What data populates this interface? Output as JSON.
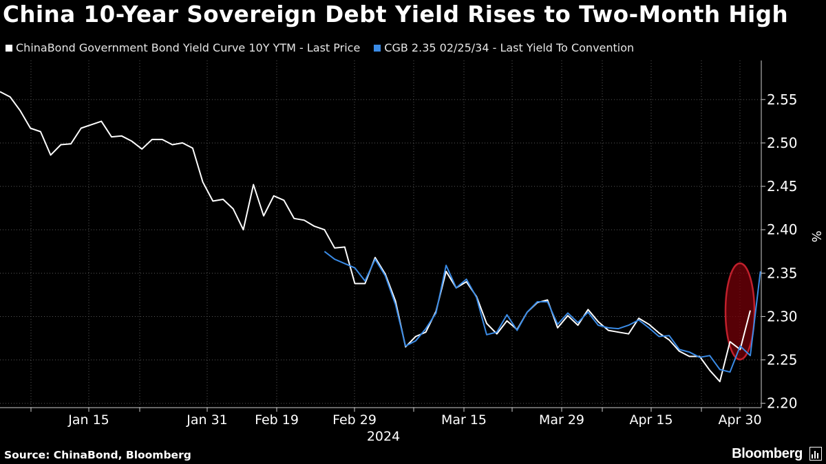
{
  "title": "China 10-Year Sovereign Debt Yield Rises to Two-Month High",
  "source": "Source: ChinaBond, Bloomberg",
  "brand": "Bloomberg",
  "chart_data": {
    "type": "line",
    "title": "China 10-Year Sovereign Debt Yield Rises to Two-Month High",
    "ylabel": "%",
    "ylim": [
      2.195,
      2.595
    ],
    "yticks": [
      "2.20",
      "2.25",
      "2.30",
      "2.35",
      "2.40",
      "2.45",
      "2.50",
      "2.55"
    ],
    "xticks": [
      "Jan 15",
      "Jan 31",
      "Feb 19",
      "Feb 29",
      "Mar 15",
      "Mar 29",
      "Apr 15",
      "Apr 30"
    ],
    "year_label": "2024",
    "grid": true,
    "legend_position": "top-left",
    "highlight": "ellipse around latest values (Apr 29–30)",
    "series": [
      {
        "name": "ChinaBond Government Bond Yield Curve 10Y YTM - Last Price",
        "color": "#ffffff",
        "values": [
          2.559,
          2.553,
          2.537,
          2.517,
          2.513,
          2.486,
          2.498,
          2.499,
          2.517,
          2.521,
          2.525,
          2.507,
          2.508,
          2.502,
          2.493,
          2.504,
          2.504,
          2.498,
          2.5,
          2.494,
          2.455,
          2.433,
          2.435,
          2.424,
          2.4,
          2.452,
          2.416,
          2.439,
          2.434,
          2.413,
          2.411,
          2.404,
          2.4,
          2.379,
          2.38,
          2.338,
          2.338,
          2.368,
          2.349,
          2.318,
          2.265,
          2.277,
          2.282,
          2.306,
          2.352,
          2.333,
          2.34,
          2.323,
          2.292,
          2.28,
          2.295,
          2.285,
          2.305,
          2.316,
          2.319,
          2.287,
          2.301,
          2.29,
          2.308,
          2.294,
          2.284,
          2.282,
          2.28,
          2.298,
          2.291,
          2.281,
          2.273,
          2.26,
          2.254,
          2.254,
          2.238,
          2.225,
          2.271,
          2.262,
          2.307
        ]
      },
      {
        "name": "CGB 2.35 02/25/34 - Last Yield To Convention",
        "color": "#3a8be6",
        "start_index": 32,
        "values": [
          2.375,
          2.366,
          2.361,
          2.356,
          2.341,
          2.366,
          2.347,
          2.314,
          2.266,
          2.272,
          2.286,
          2.304,
          2.359,
          2.333,
          2.343,
          2.322,
          2.279,
          2.282,
          2.302,
          2.284,
          2.305,
          2.317,
          2.317,
          2.291,
          2.304,
          2.293,
          2.305,
          2.29,
          2.287,
          2.286,
          2.29,
          2.296,
          2.287,
          2.277,
          2.278,
          2.262,
          2.259,
          2.253,
          2.255,
          2.239,
          2.236,
          2.266,
          2.255,
          2.352
        ]
      }
    ]
  }
}
